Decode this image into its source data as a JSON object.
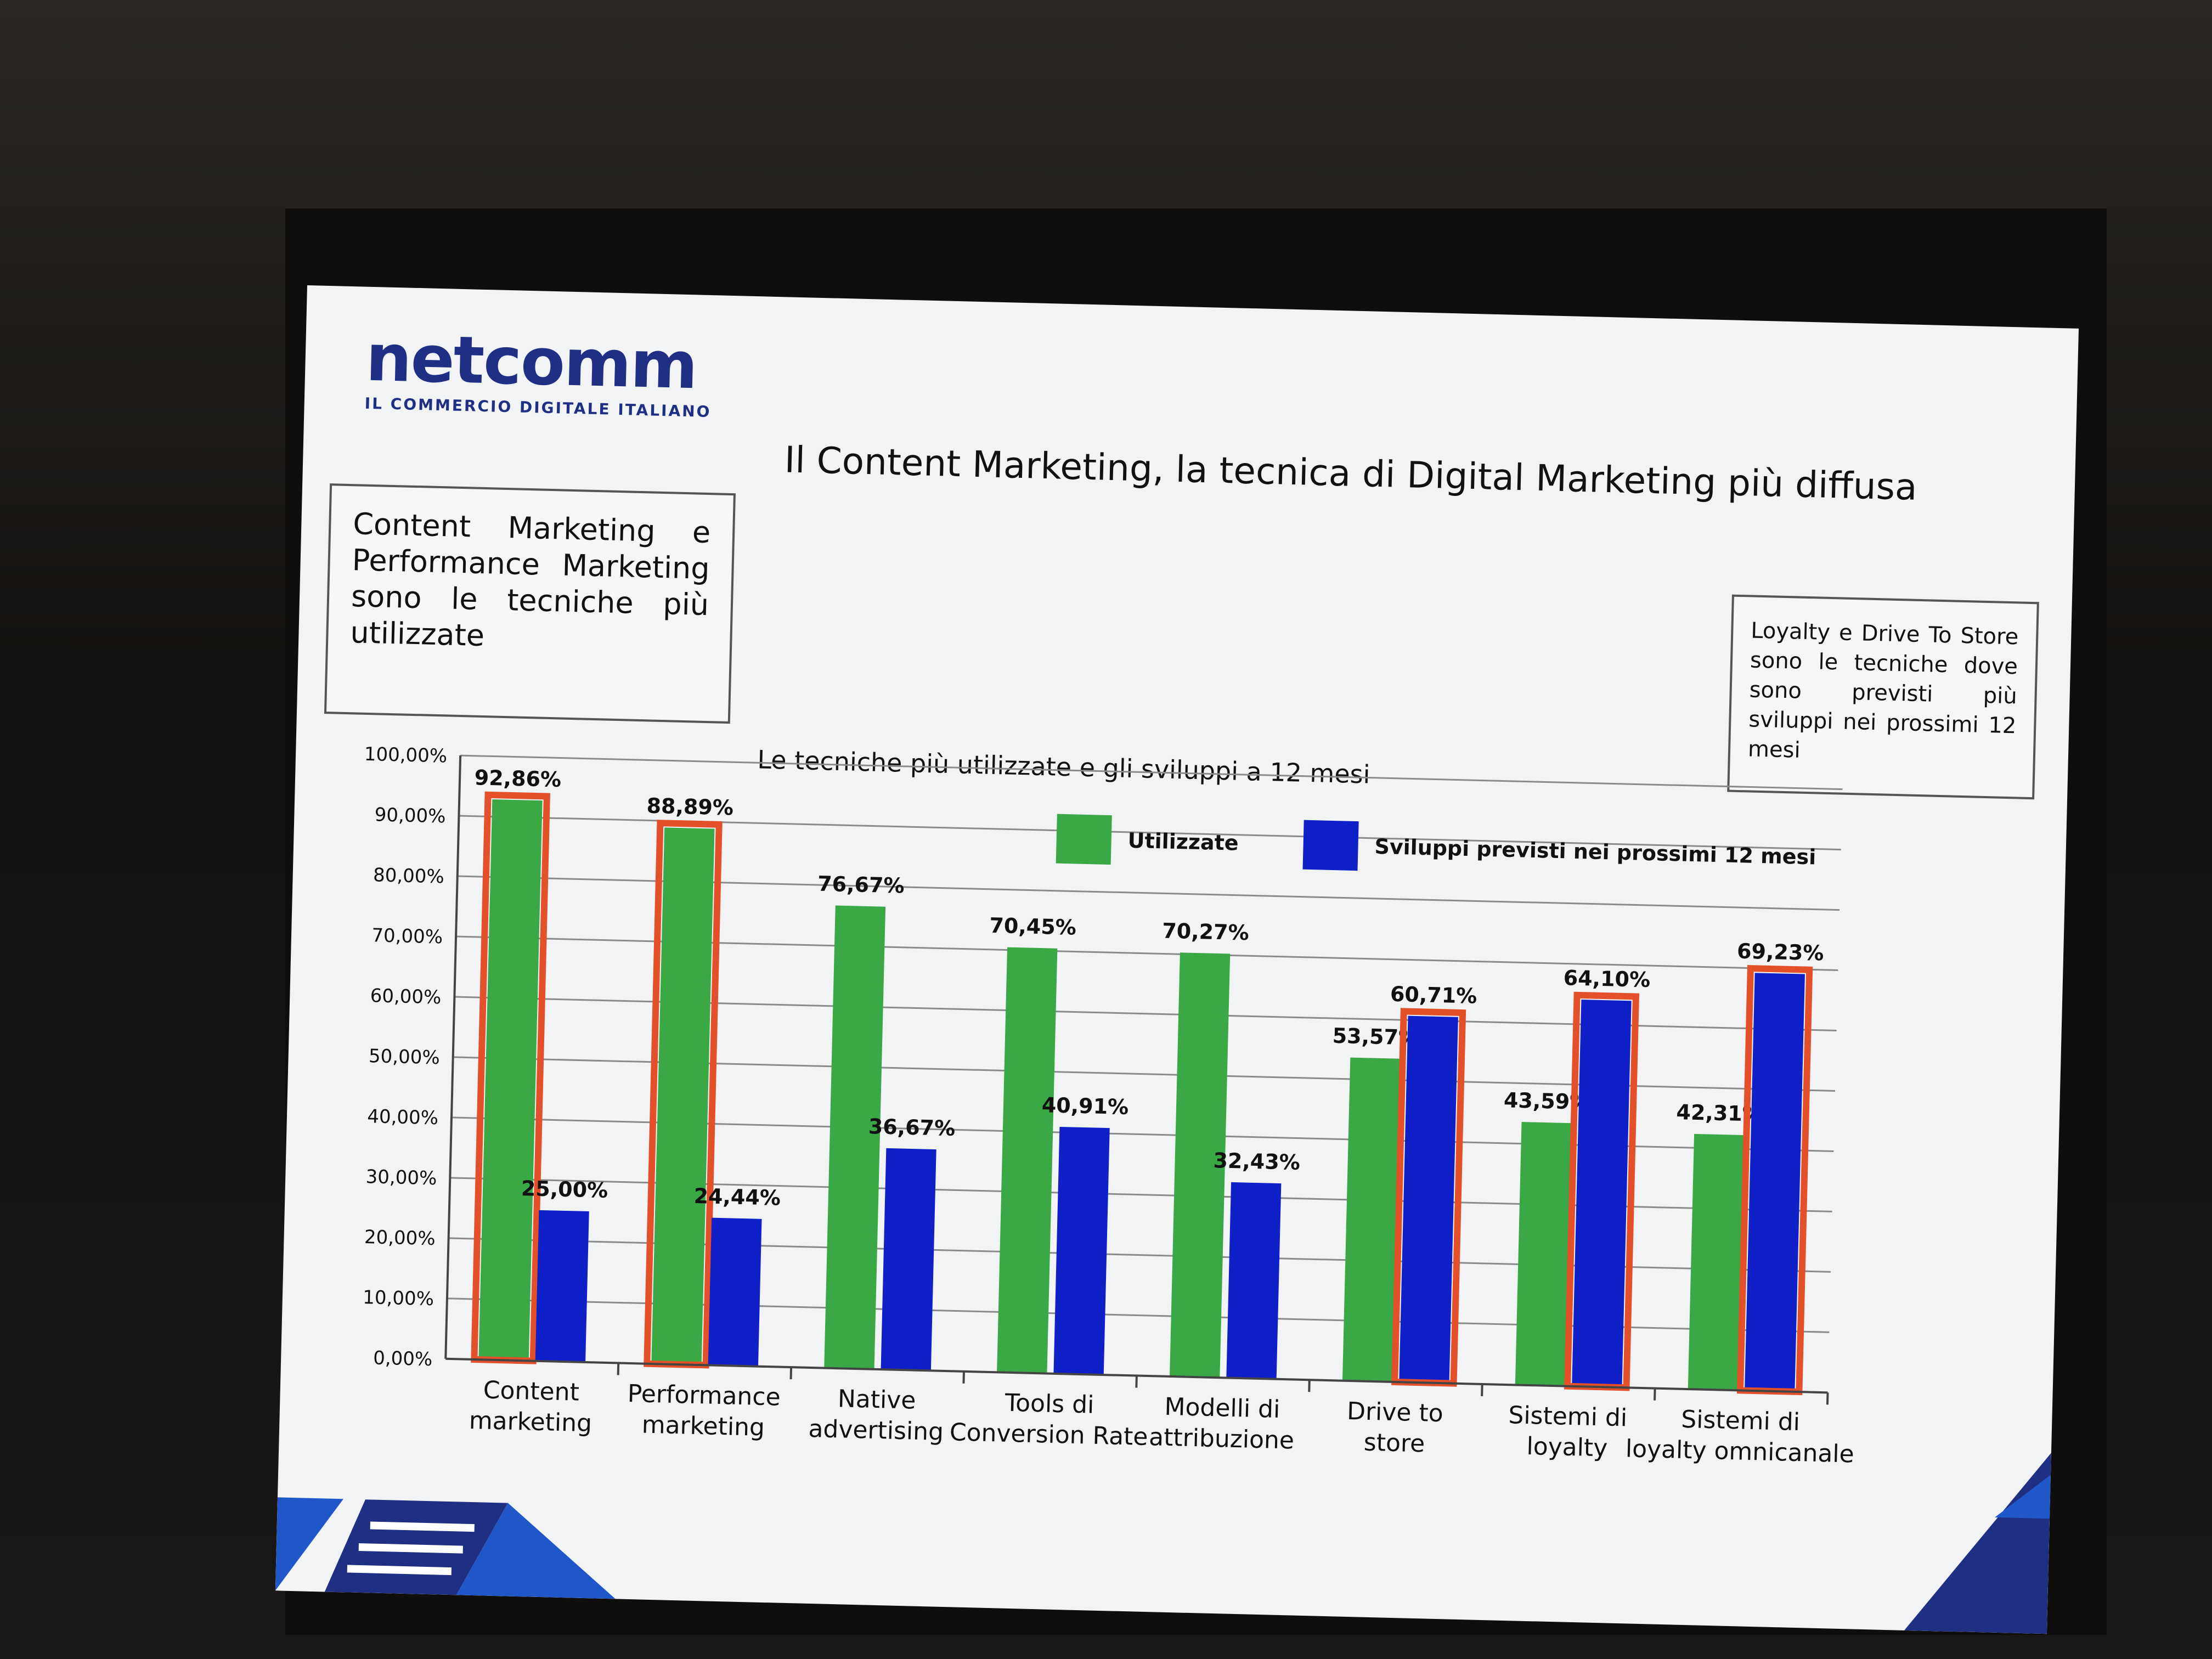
{
  "slide": {
    "logo_text": "netcomm",
    "logo_tagline": "IL COMMERCIO DIGITALE ITALIANO",
    "title": "Il Content Marketing, la tecnica di Digital Marketing più diffusa",
    "callout_left": "Content Marketing e Performance Marketing sono le tecniche più utilizzate",
    "callout_right": "Loyalty e Drive To Store sono le tecniche dove sono previsti più sviluppi nei prossimi 12 mesi"
  },
  "colors": {
    "utilizzate": "#3aa845",
    "sviluppi": "#1020c8",
    "highlight": "#e4502a",
    "slide_bg": "#f2f3f5",
    "brand": "#1f2f84"
  },
  "chart_data": {
    "type": "bar",
    "title": "Le tecniche più utilizzate e gli sviluppi a 12 mesi",
    "categories": [
      "Content marketing",
      "Performance marketing",
      "Native advertising",
      "Tools di Conversion Rate",
      "Modelli di attribuzione",
      "Drive to store",
      "Sistemi di loyalty",
      "Sistemi di loyalty omnicanale"
    ],
    "series": [
      {
        "name": "Utilizzate",
        "values": [
          92.86,
          88.89,
          76.67,
          70.45,
          70.27,
          53.57,
          43.59,
          42.31
        ],
        "labels": [
          "92,86%",
          "88,89%",
          "76,67%",
          "70,45%",
          "70,27%",
          "53,57%",
          "43,59%",
          "42,31%"
        ],
        "highlighted": [
          true,
          true,
          false,
          false,
          false,
          false,
          false,
          false
        ]
      },
      {
        "name": "Sviluppi previsti nei prossimi 12 mesi",
        "values": [
          25.0,
          24.44,
          36.67,
          40.91,
          32.43,
          60.71,
          64.1,
          69.23
        ],
        "labels": [
          "25,00%",
          "24,44%",
          "36,67%",
          "40,91%",
          "32,43%",
          "60,71%",
          "64,10%",
          "69,23%"
        ],
        "highlighted": [
          false,
          false,
          false,
          false,
          false,
          true,
          true,
          true
        ]
      }
    ],
    "ylim": [
      0,
      100
    ],
    "yticks": [
      "0,00%",
      "10,00%",
      "20,00%",
      "30,00%",
      "40,00%",
      "50,00%",
      "60,00%",
      "70,00%",
      "80,00%",
      "90,00%",
      "100,00%"
    ],
    "grid": true,
    "legend_position": "top-right"
  }
}
